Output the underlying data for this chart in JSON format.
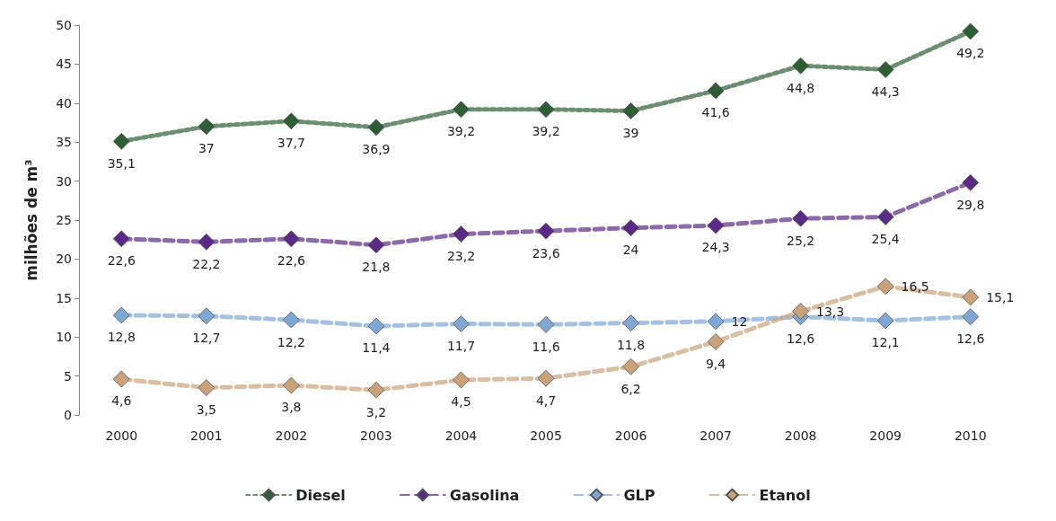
{
  "chart_data": {
    "type": "line",
    "ylabel": "milhões de m³",
    "categories": [
      "2000",
      "2001",
      "2002",
      "2003",
      "2004",
      "2005",
      "2006",
      "2007",
      "2008",
      "2009",
      "2010"
    ],
    "series": [
      {
        "name": "Diesel",
        "color": "#2e5e33",
        "line_style": "dotted",
        "values": [
          35.1,
          37,
          37.7,
          36.9,
          39.2,
          39.2,
          39,
          41.6,
          44.8,
          44.3,
          49.2
        ],
        "value_labels": [
          "35,1",
          "37",
          "37,7",
          "36,9",
          "39,2",
          "39,2",
          "39",
          "41,6",
          "44,8",
          "44,3",
          "49,2"
        ]
      },
      {
        "name": "Gasolina",
        "color": "#5b2a86",
        "line_style": "dashed",
        "values": [
          22.6,
          22.2,
          22.6,
          21.8,
          23.2,
          23.6,
          24,
          24.3,
          25.2,
          25.4,
          29.8
        ],
        "value_labels": [
          "22,6",
          "22,2",
          "22,6",
          "21,8",
          "23,2",
          "23,6",
          "24",
          "24,3",
          "25,2",
          "25,4",
          "29,8"
        ]
      },
      {
        "name": "GLP",
        "color": "#7fa7d6",
        "line_style": "dashed",
        "values": [
          12.8,
          12.7,
          12.2,
          11.4,
          11.7,
          11.6,
          11.8,
          12,
          12.6,
          12.1,
          12.6
        ],
        "value_labels": [
          "12,8",
          "12,7",
          "12,2",
          "11,4",
          "11,7",
          "11,6",
          "11,8",
          "12",
          "12,6",
          "12,1",
          "12,6"
        ]
      },
      {
        "name": "Etanol",
        "color": "#c9a27a",
        "line_style": "dashed",
        "values": [
          4.6,
          3.5,
          3.8,
          3.2,
          4.5,
          4.7,
          6.2,
          9.4,
          13.3,
          16.5,
          15.1
        ],
        "value_labels": [
          "4,6",
          "3,5",
          "3,8",
          "3,2",
          "4,5",
          "4,7",
          "6,2",
          "9,4",
          "13,3",
          "16,5",
          "15,1"
        ]
      }
    ],
    "ylim": [
      0,
      50
    ],
    "yticks": [
      0,
      5,
      10,
      15,
      20,
      25,
      30,
      35,
      40,
      45,
      50
    ],
    "legend": "bottom",
    "marker": "diamond"
  }
}
